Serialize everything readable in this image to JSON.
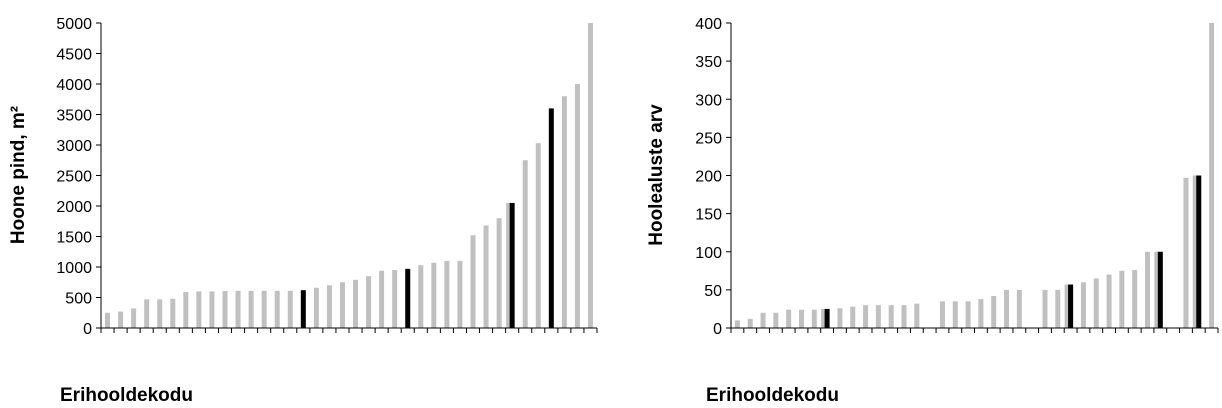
{
  "colors": {
    "bar": "#c0c0c0",
    "highlight": "#000000",
    "axis": "#000000"
  },
  "chart_data": [
    {
      "type": "bar",
      "title": "",
      "xlabel": "Erihooldekodu",
      "ylabel": "Hoone pind, m²",
      "ylim": [
        0,
        5000
      ],
      "yticks": [
        "0",
        "500",
        "1000",
        "1500",
        "2000",
        "2500",
        "3000",
        "3500",
        "4000",
        "4500",
        "5000"
      ],
      "grid": false,
      "legend": "none",
      "slots": 38,
      "values": [
        250,
        270,
        320,
        470,
        470,
        480,
        590,
        600,
        600,
        605,
        610,
        610,
        610,
        610,
        610,
        620,
        660,
        700,
        750,
        790,
        850,
        940,
        950,
        970,
        1030,
        1070,
        1100,
        1100,
        1520,
        1680,
        1800,
        2050,
        2750,
        3030,
        3600,
        3800,
        4000,
        5000
      ],
      "highlight": [
        false,
        false,
        false,
        false,
        false,
        false,
        false,
        false,
        false,
        false,
        false,
        false,
        false,
        false,
        false,
        true,
        false,
        false,
        false,
        false,
        false,
        false,
        false,
        true,
        false,
        false,
        false,
        false,
        false,
        false,
        false,
        true,
        false,
        false,
        true,
        false,
        false,
        false
      ],
      "tie_left": [
        false,
        false,
        false,
        false,
        false,
        false,
        false,
        false,
        false,
        false,
        false,
        false,
        false,
        false,
        false,
        false,
        false,
        false,
        false,
        false,
        false,
        false,
        false,
        false,
        false,
        false,
        false,
        false,
        false,
        false,
        false,
        true,
        false,
        false,
        false,
        false,
        false,
        false
      ]
    },
    {
      "type": "bar",
      "title": "",
      "xlabel": "Erihooldekodu",
      "ylabel": "Hoolealuste arv",
      "ylim": [
        0,
        400
      ],
      "yticks": [
        "0",
        "50",
        "100",
        "150",
        "200",
        "250",
        "300",
        "350",
        "400"
      ],
      "grid": false,
      "legend": "none",
      "slots": 38,
      "values": [
        10,
        12,
        20,
        20,
        24,
        24,
        24,
        25,
        26,
        28,
        30,
        30,
        30,
        30,
        32,
        null,
        35,
        35,
        35,
        38,
        42,
        50,
        50,
        null,
        50,
        50,
        57,
        60,
        65,
        70,
        75,
        76,
        100,
        100,
        null,
        197,
        200,
        400
      ],
      "highlight": [
        false,
        false,
        false,
        false,
        false,
        false,
        false,
        true,
        false,
        false,
        false,
        false,
        false,
        false,
        false,
        false,
        false,
        false,
        false,
        false,
        false,
        false,
        false,
        false,
        false,
        false,
        true,
        false,
        false,
        false,
        false,
        false,
        false,
        true,
        false,
        false,
        true,
        false
      ],
      "tie_left": [
        false,
        false,
        false,
        false,
        false,
        false,
        false,
        true,
        false,
        false,
        false,
        false,
        false,
        false,
        false,
        false,
        false,
        false,
        false,
        false,
        false,
        false,
        false,
        false,
        false,
        false,
        true,
        false,
        false,
        false,
        false,
        false,
        false,
        true,
        false,
        false,
        true,
        false
      ]
    }
  ]
}
